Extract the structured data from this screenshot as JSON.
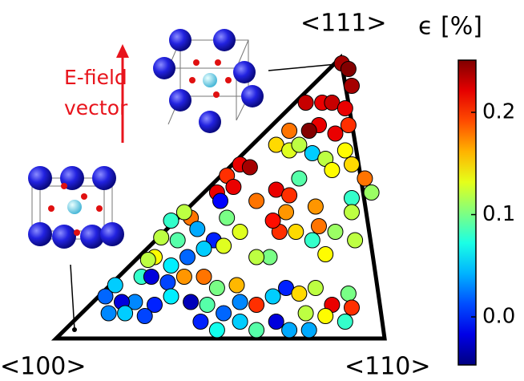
{
  "chart_data": {
    "type": "scatter",
    "corner_labels": [
      "<111>",
      "<100>",
      "<110>"
    ],
    "annotation": [
      "E-field",
      "vector"
    ],
    "colorbar_label": "ϵ [%]",
    "colormap": "jet",
    "clim": [
      -0.047,
      0.251
    ],
    "cticks": [
      {
        "value": 0,
        "label": "0.0"
      },
      0.1,
      0.2
    ],
    "xlim": [
      0,
      1
    ],
    "ylim": [
      0,
      1
    ],
    "x": [
      0.87,
      0.89,
      0.9,
      0.76,
      0.81,
      0.84,
      0.88,
      0.89,
      0.85,
      0.8,
      0.77,
      0.71,
      0.67,
      0.71,
      0.74,
      0.78,
      0.82,
      0.84,
      0.88,
      0.9,
      0.94,
      0.96,
      0.9,
      0.9,
      0.56,
      0.59,
      0.52,
      0.49,
      0.54,
      0.61,
      0.67,
      0.71,
      0.74,
      0.7,
      0.68,
      0.66,
      0.79,
      0.8,
      0.78,
      0.73,
      0.82,
      0.85,
      0.91,
      0.65,
      0.61,
      0.56,
      0.52,
      0.5,
      0.41,
      0.39,
      0.35,
      0.32,
      0.37,
      0.43,
      0.48,
      0.51,
      0.45,
      0.4,
      0.35,
      0.3,
      0.28,
      0.26,
      0.29,
      0.34,
      0.39,
      0.45,
      0.49,
      0.55,
      0.56,
      0.61,
      0.66,
      0.7,
      0.74,
      0.79,
      0.84,
      0.89,
      0.88,
      0.82,
      0.76,
      0.71,
      0.67,
      0.61,
      0.56,
      0.51,
      0.46,
      0.41,
      0.35,
      0.3,
      0.24,
      0.2,
      0.15,
      0.18,
      0.21,
      0.16,
      0.27,
      0.44,
      0.49,
      0.77,
      0.9
    ],
    "y": [
      0.98,
      0.96,
      0.9,
      0.84,
      0.84,
      0.84,
      0.82,
      0.76,
      0.73,
      0.76,
      0.74,
      0.74,
      0.69,
      0.67,
      0.69,
      0.66,
      0.64,
      0.6,
      0.67,
      0.62,
      0.57,
      0.52,
      0.5,
      0.45,
      0.62,
      0.61,
      0.58,
      0.52,
      0.54,
      0.49,
      0.53,
      0.51,
      0.57,
      0.45,
      0.38,
      0.42,
      0.47,
      0.4,
      0.35,
      0.38,
      0.3,
      0.38,
      0.35,
      0.29,
      0.29,
      0.38,
      0.43,
      0.49,
      0.43,
      0.45,
      0.42,
      0.36,
      0.35,
      0.39,
      0.35,
      0.33,
      0.32,
      0.29,
      0.26,
      0.29,
      0.28,
      0.22,
      0.22,
      0.2,
      0.22,
      0.22,
      0.18,
      0.19,
      0.13,
      0.12,
      0.15,
      0.18,
      0.16,
      0.18,
      0.12,
      0.16,
      0.06,
      0.08,
      0.09,
      0.03,
      0.06,
      0.03,
      0.06,
      0.09,
      0.12,
      0.13,
      0.15,
      0.12,
      0.13,
      0.13,
      0.15,
      0.19,
      0.09,
      0.09,
      0.08,
      0.06,
      0.03,
      0.03,
      0.11
    ],
    "c": [
      0.24,
      0.25,
      0.24,
      0.23,
      0.22,
      0.23,
      0.22,
      0.2,
      0.22,
      0.22,
      0.25,
      0.18,
      0.15,
      0.13,
      0.12,
      0.05,
      0.12,
      0.14,
      0.14,
      0.15,
      0.18,
      0.11,
      0.08,
      0.12,
      0.22,
      0.24,
      0.2,
      0.22,
      0.22,
      0.18,
      0.22,
      0.2,
      0.09,
      0.17,
      0.2,
      0.21,
      0.17,
      0.18,
      0.08,
      0.15,
      0.14,
      0.11,
      0.12,
      0.1,
      0.12,
      0.13,
      0.1,
      -0.01,
      0.18,
      0.12,
      0.08,
      0.12,
      0.09,
      0.04,
      0.0,
      0.13,
      0.05,
      0.02,
      0.06,
      0.14,
      0.12,
      0.08,
      -0.02,
      0.01,
      0.17,
      0.18,
      0.1,
      0.16,
      0.03,
      0.2,
      0.05,
      0.0,
      0.15,
      0.12,
      0.22,
      0.1,
      0.08,
      0.14,
      0.12,
      0.04,
      -0.02,
      0.09,
      0.05,
      0.02,
      0.09,
      -0.03,
      0.06,
      0.0,
      0.03,
      -0.02,
      0.02,
      0.05,
      0.05,
      0.03,
      0.01,
      0.0,
      0.07,
      0.04,
      0.2
    ]
  }
}
